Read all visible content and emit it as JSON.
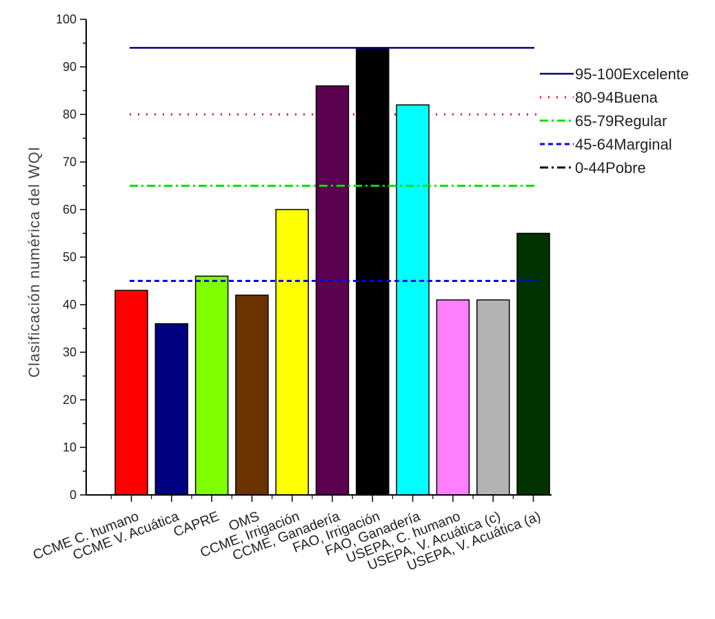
{
  "chart_data": {
    "type": "bar",
    "title": "",
    "xlabel": "",
    "ylabel": "Clasificación numérica del WQI",
    "ylim": [
      0,
      100
    ],
    "yticks": [
      0,
      10,
      20,
      30,
      40,
      50,
      60,
      70,
      80,
      90,
      100
    ],
    "grid": false,
    "legend_position": "right",
    "categories": [
      "CCME C. humano",
      "CCME V. Acuática",
      "CAPRE",
      "OMS",
      "CCME, Irrigación",
      "CCME, Ganadería",
      "FAO, Irrigación",
      "FAO, Ganadería",
      "USEPA, C. humano",
      "USEPA, V. Acuática (c)",
      "USEPA, V. Acuática (a)"
    ],
    "values": [
      43,
      36,
      46,
      42,
      60,
      86,
      94,
      82,
      41,
      41,
      55
    ],
    "bar_colors": [
      "#ff0000",
      "#000080",
      "#80ff00",
      "#6b3300",
      "#ffff00",
      "#5c0050",
      "#000000",
      "#00ffff",
      "#ff7fff",
      "#b3b3b3",
      "#003300"
    ],
    "reference_lines": [
      {
        "label": "95-100Excelente",
        "value": 94,
        "color": "#000080",
        "style": "solid"
      },
      {
        "label": "80-94Buena",
        "value": 80,
        "color": "#ff0000",
        "style": "dot"
      },
      {
        "label": "65-79Regular",
        "value": 65,
        "color": "#00e000",
        "style": "dash-dot"
      },
      {
        "label": "45-64Marginal",
        "value": 45,
        "color": "#0000ff",
        "style": "dash"
      },
      {
        "label": "0-44Pobre",
        "value": 0,
        "color": "#000000",
        "style": "dash-dot"
      }
    ]
  }
}
